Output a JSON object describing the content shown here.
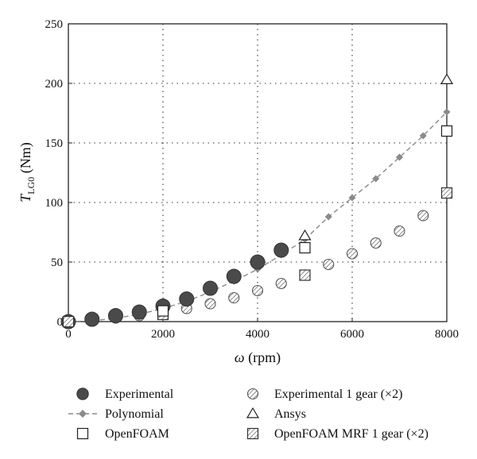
{
  "chart_data": {
    "type": "scatter",
    "xlabel": {
      "symbol": "ω",
      "unit": " (rpm)"
    },
    "ylabel": {
      "symbol": "T",
      "subscript": "LG0",
      "unit": " (Nm)"
    },
    "xlim": [
      0,
      8000
    ],
    "ylim": [
      0,
      250
    ],
    "xticks": [
      "0",
      "2000",
      "4000",
      "6000",
      "8000"
    ],
    "yticks": [
      "0",
      "50",
      "100",
      "150",
      "200",
      "250"
    ],
    "grid": true,
    "legend_position": "bottom",
    "series": [
      {
        "name": "Experimental",
        "marker": "filled-circle",
        "color": "#4a4a4a",
        "x": [
          0,
          500,
          1000,
          1500,
          2000,
          2500,
          3000,
          3500,
          4000,
          4500
        ],
        "y": [
          0,
          2,
          5,
          8,
          13,
          19,
          28,
          38,
          50,
          60
        ]
      },
      {
        "name": "Experimental 1 gear (×2)",
        "marker": "hatched-circle",
        "color": "#666666",
        "x": [
          0,
          500,
          1000,
          1500,
          2000,
          2500,
          3000,
          3500,
          4000,
          4500,
          5500,
          6000,
          6500,
          7000,
          7500
        ],
        "y": [
          0,
          1,
          3,
          5,
          8,
          11,
          15,
          20,
          26,
          32,
          48,
          57,
          66,
          76,
          89
        ]
      },
      {
        "name": "Polynomial",
        "marker": "diamond-dashed-line",
        "color": "#8a8a8a",
        "x": [
          0,
          500,
          1000,
          1500,
          2000,
          2500,
          3000,
          3500,
          4000,
          4500,
          5000,
          5500,
          6000,
          6500,
          7000,
          7500,
          8000
        ],
        "y": [
          0,
          0.7,
          2.8,
          6.2,
          11,
          17,
          25,
          34,
          44,
          56,
          69,
          88,
          104,
          120,
          138,
          156,
          176
        ]
      },
      {
        "name": "Ansys",
        "marker": "open-triangle",
        "color": "#222222",
        "x": [
          5000,
          8000
        ],
        "y": [
          72,
          203
        ]
      },
      {
        "name": "OpenFOAM",
        "marker": "open-square",
        "color": "#222222",
        "x": [
          2000,
          5000,
          8000
        ],
        "y": [
          9,
          62,
          160
        ]
      },
      {
        "name": "OpenFOAM MRF 1 gear (×2)",
        "marker": "hatched-square",
        "color": "#444444",
        "x": [
          0,
          2000,
          5000,
          8000
        ],
        "y": [
          0,
          6,
          39,
          108
        ]
      }
    ],
    "legend": [
      {
        "label": "Experimental",
        "marker": "filled-circle"
      },
      {
        "label": "Experimental 1 gear (×2)",
        "marker": "hatched-circle"
      },
      {
        "label": "Polynomial",
        "marker": "diamond-dashed-line"
      },
      {
        "label": "Ansys",
        "marker": "open-triangle"
      },
      {
        "label": "OpenFOAM",
        "marker": "open-square"
      },
      {
        "label": "OpenFOAM MRF 1 gear (×2)",
        "marker": "hatched-square"
      }
    ]
  }
}
